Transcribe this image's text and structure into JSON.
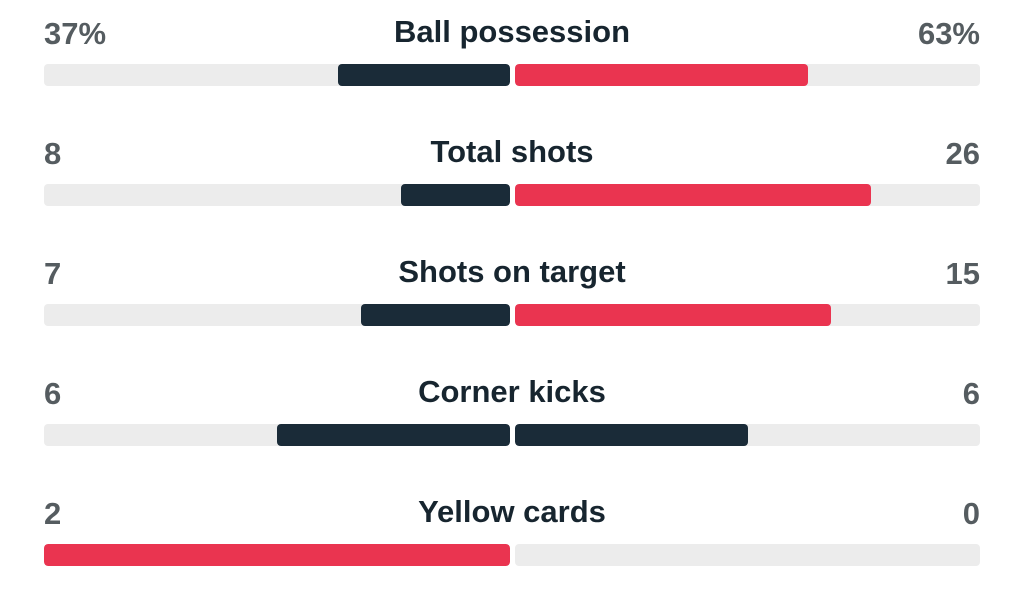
{
  "colors": {
    "dark": "#1a2b38",
    "red": "#ea3450",
    "track": "#ececec",
    "value_text": "#555c60",
    "label_text": "#17252f"
  },
  "stats": [
    {
      "label": "Ball possession",
      "home": "37%",
      "away": "63%",
      "home_fraction": 0.37,
      "away_fraction": 0.63,
      "home_color": "dark",
      "away_color": "red"
    },
    {
      "label": "Total shots",
      "home": "8",
      "away": "26",
      "home_fraction": 0.235,
      "away_fraction": 0.765,
      "home_color": "dark",
      "away_color": "red"
    },
    {
      "label": "Shots on target",
      "home": "7",
      "away": "15",
      "home_fraction": 0.32,
      "away_fraction": 0.68,
      "home_color": "dark",
      "away_color": "red"
    },
    {
      "label": "Corner kicks",
      "home": "6",
      "away": "6",
      "home_fraction": 0.5,
      "away_fraction": 0.5,
      "home_color": "dark",
      "away_color": "dark"
    },
    {
      "label": "Yellow cards",
      "home": "2",
      "away": "0",
      "home_fraction": 1.0,
      "away_fraction": 0.0,
      "home_color": "red",
      "away_color": "dark"
    }
  ]
}
